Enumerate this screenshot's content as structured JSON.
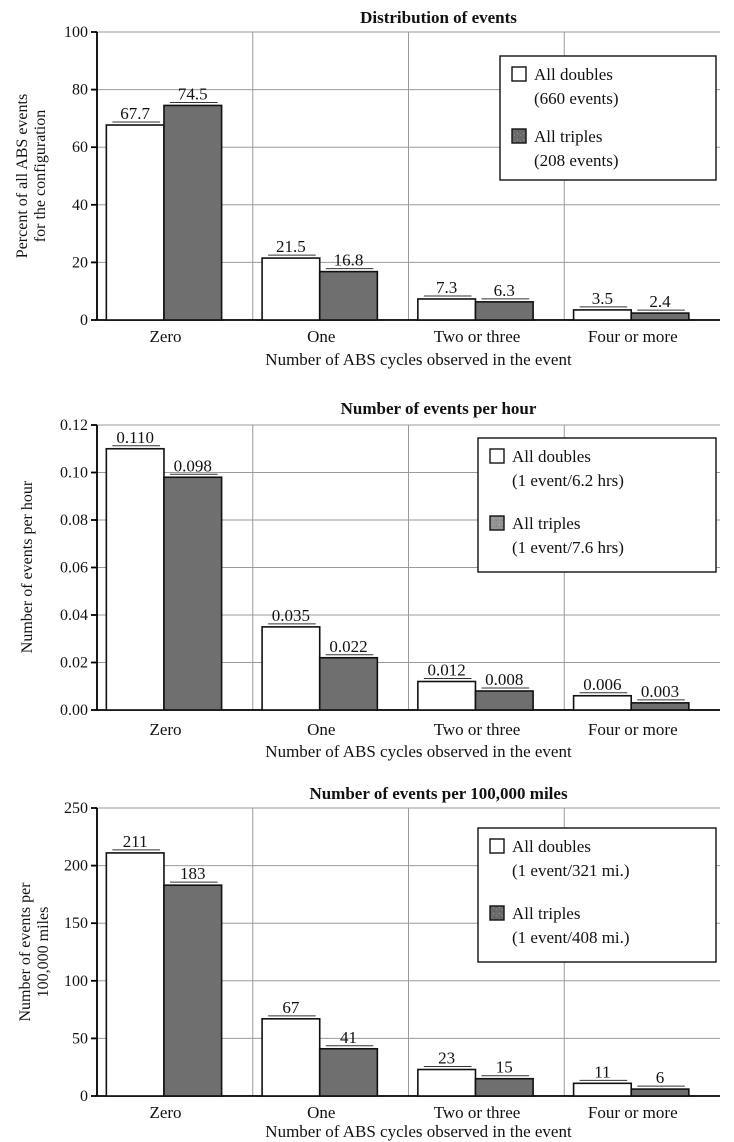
{
  "chart_data": [
    {
      "type": "bar",
      "title": "Distribution of events",
      "xlabel": "Number of ABS cycles observed in  the event",
      "ylabel": [
        "Percent of all ABS events",
        "for the configuration"
      ],
      "categories": [
        "Zero",
        "One",
        "Two or three",
        "Four or more"
      ],
      "ylim": [
        0,
        100
      ],
      "yticks": [
        "0",
        "20",
        "40",
        "60",
        "80",
        "100"
      ],
      "ytick_values": [
        0,
        20,
        40,
        60,
        80,
        100
      ],
      "series": [
        {
          "values": [
            67.7,
            21.5,
            7.3,
            3.5
          ],
          "labels": [
            "67.7",
            "21.5",
            "7.3",
            "3.5"
          ]
        },
        {
          "values": [
            74.5,
            16.8,
            6.3,
            2.4
          ],
          "labels": [
            "74.5",
            "16.8",
            "6.3",
            "2.4"
          ]
        }
      ],
      "legend": [
        {
          "lines": [
            "All doubles",
            "(660 events)"
          ]
        },
        {
          "lines": [
            "All triples",
            "(208 events)"
          ]
        }
      ],
      "legend_position": "top-right",
      "grid": true
    },
    {
      "type": "bar",
      "title": "Number of events per hour",
      "xlabel": "Number of ABS cycles observed in  the event",
      "ylabel": [
        "Number of events per hour"
      ],
      "categories": [
        "Zero",
        "One",
        "Two or three",
        "Four or more"
      ],
      "ylim": [
        0,
        0.12
      ],
      "yticks": [
        "0.00",
        "0.02",
        "0.04",
        "0.06",
        "0.08",
        "0.10",
        "0.12"
      ],
      "ytick_values": [
        0,
        0.02,
        0.04,
        0.06,
        0.08,
        0.1,
        0.12
      ],
      "series": [
        {
          "values": [
            0.11,
            0.035,
            0.012,
            0.006
          ],
          "labels": [
            "0.110",
            "0.035",
            "0.012",
            "0.006"
          ]
        },
        {
          "values": [
            0.098,
            0.022,
            0.008,
            0.003
          ],
          "labels": [
            "0.098",
            "0.022",
            "0.008",
            "0.003"
          ]
        }
      ],
      "legend": [
        {
          "lines": [
            "All doubles",
            "(1 event/6.2 hrs)"
          ]
        },
        {
          "lines": [
            "All triples",
            "(1 event/7.6 hrs)"
          ]
        }
      ],
      "legend_position": "top-right",
      "grid": true
    },
    {
      "type": "bar",
      "title": "Number of events per 100,000 miles",
      "xlabel": "Number of ABS cycles observed in  the event",
      "ylabel": [
        "Number of events per",
        "100,000 miles"
      ],
      "categories": [
        "Zero",
        "One",
        "Two or three",
        "Four or more"
      ],
      "ylim": [
        0,
        250
      ],
      "yticks": [
        "0",
        "50",
        "100",
        "150",
        "200",
        "250"
      ],
      "ytick_values": [
        0,
        50,
        100,
        150,
        200,
        250
      ],
      "series": [
        {
          "values": [
            211,
            67,
            23,
            11
          ],
          "labels": [
            "211",
            "67",
            "23",
            "11"
          ]
        },
        {
          "values": [
            183,
            41,
            15,
            6
          ],
          "labels": [
            "183",
            "41",
            "15",
            "6"
          ]
        }
      ],
      "legend": [
        {
          "lines": [
            "All doubles",
            "(1 event/321 mi.)"
          ]
        },
        {
          "lines": [
            "All triples",
            "(1 event/408 mi.)"
          ]
        }
      ],
      "legend_position": "top-right",
      "grid": true
    }
  ]
}
